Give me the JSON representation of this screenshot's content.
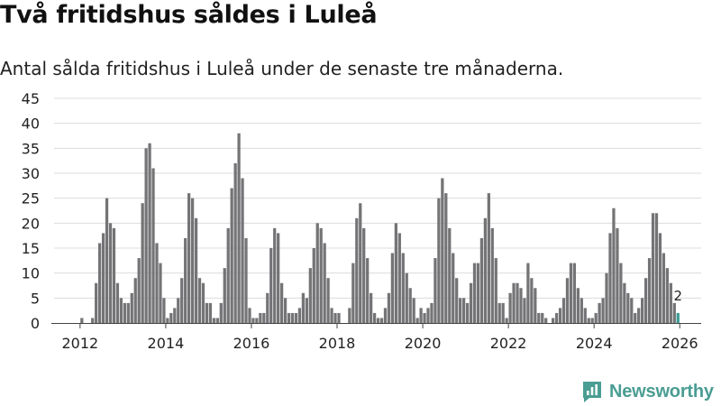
{
  "header": {
    "title": "Två fritidshus såldes i Luleå",
    "subtitle": "Antal sålda fritidshus i Luleå under de senaste tre månaderna."
  },
  "brand": {
    "name": "Newsworthy",
    "icon": "newsworthy-logo-icon",
    "color": "#4a9d93"
  },
  "chart_data": {
    "type": "bar",
    "title": "Två fritidshus såldes i Luleå",
    "subtitle": "Antal sålda fritidshus i Luleå under de senaste tre månaderna.",
    "xlabel": "",
    "ylabel": "",
    "ylim": [
      0,
      45
    ],
    "yticks": [
      0,
      5,
      10,
      15,
      20,
      25,
      30,
      35,
      40,
      45
    ],
    "xlim": [
      2011.33,
      2026.5
    ],
    "xticks": [
      2012,
      2014,
      2016,
      2018,
      2020,
      2022,
      2024,
      2026
    ],
    "xtick_labels": [
      "2012",
      "2014",
      "2016",
      "2018",
      "2020",
      "2022",
      "2024",
      "2026"
    ],
    "grid": true,
    "start": {
      "year": 2011,
      "month": 5
    },
    "bar_color": "#747477",
    "highlight_color": "#3a9b95",
    "highlight_last": true,
    "last_value_label": "2",
    "values": [
      0,
      0,
      0,
      0,
      0,
      0,
      0,
      0,
      1,
      0,
      0,
      1,
      8,
      16,
      18,
      25,
      20,
      19,
      8,
      5,
      4,
      4,
      6,
      9,
      13,
      24,
      35,
      36,
      31,
      16,
      12,
      5,
      1,
      2,
      3,
      5,
      9,
      17,
      26,
      25,
      21,
      9,
      8,
      4,
      4,
      1,
      1,
      4,
      11,
      19,
      27,
      32,
      38,
      29,
      17,
      3,
      1,
      1,
      2,
      2,
      6,
      15,
      19,
      18,
      8,
      5,
      2,
      2,
      2,
      3,
      6,
      5,
      11,
      15,
      20,
      19,
      16,
      9,
      3,
      2,
      2,
      0,
      0,
      3,
      12,
      21,
      24,
      19,
      13,
      6,
      2,
      1,
      1,
      3,
      6,
      14,
      20,
      18,
      14,
      10,
      7,
      5,
      1,
      3,
      2,
      3,
      4,
      13,
      25,
      29,
      26,
      19,
      14,
      9,
      5,
      5,
      4,
      8,
      12,
      12,
      17,
      21,
      26,
      19,
      13,
      4,
      4,
      1,
      6,
      8,
      8,
      7,
      5,
      12,
      9,
      7,
      2,
      2,
      1,
      0,
      1,
      2,
      3,
      5,
      9,
      12,
      12,
      7,
      5,
      3,
      1,
      1,
      2,
      4,
      5,
      10,
      18,
      23,
      19,
      12,
      8,
      6,
      5,
      2,
      3,
      5,
      9,
      13,
      22,
      22,
      18,
      14,
      11,
      8,
      4,
      2
    ]
  }
}
